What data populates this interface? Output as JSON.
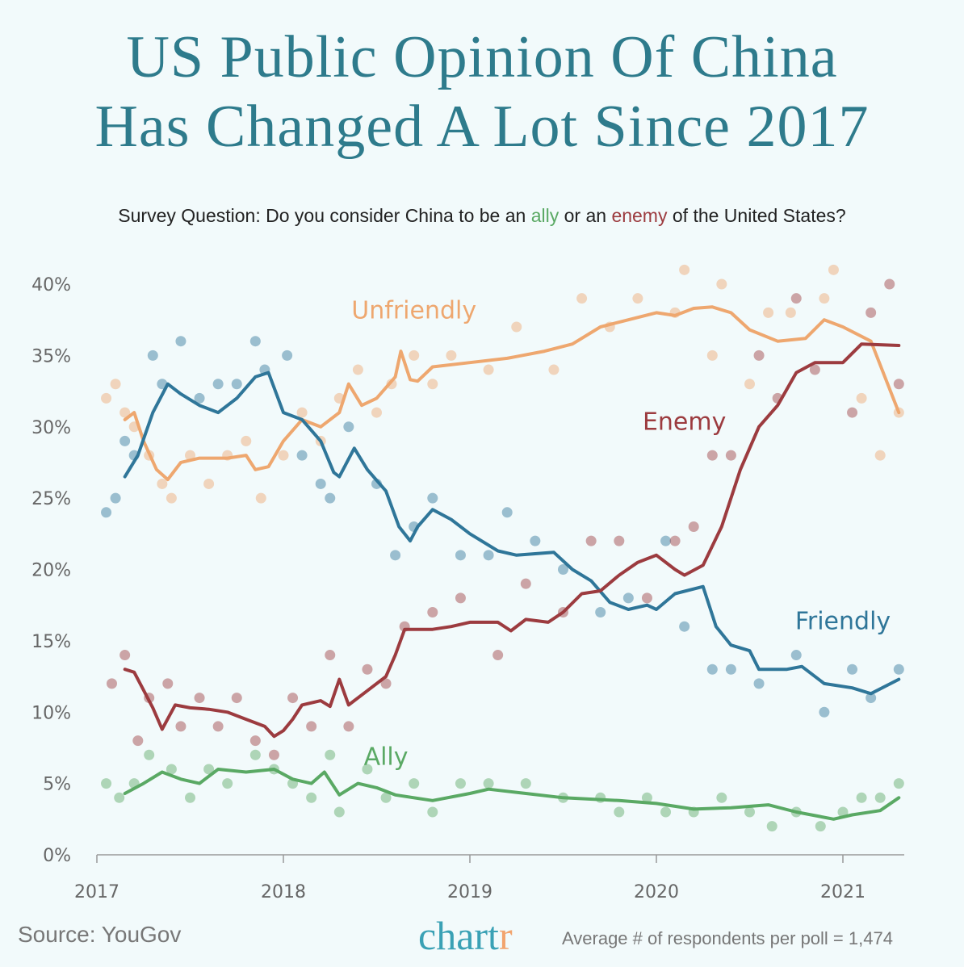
{
  "title_lines": [
    "US Public Opinion Of China",
    "Has Changed A Lot Since 2017"
  ],
  "subtitle": {
    "prefix": "Survey Question:",
    "part1": " Do you consider China to be an ",
    "ally": "ally",
    "part2": " or an ",
    "enemy": "enemy",
    "part3": " of the United States?"
  },
  "source": "Source: YouGov",
  "logo": {
    "main": "chart",
    "accent": "r"
  },
  "note": "Average # of respondents per poll = 1,474",
  "chart_data": {
    "type": "line",
    "title": "US Public Opinion Of China Has Changed A Lot Since 2017",
    "xlabel": "",
    "ylabel": "",
    "xlim": [
      2017,
      2021.3
    ],
    "ylim": [
      0,
      40
    ],
    "x_ticks": [
      "2017",
      "2018",
      "2019",
      "2020",
      "2021"
    ],
    "y_ticks": [
      "0%",
      "5%",
      "10%",
      "15%",
      "20%",
      "25%",
      "30%",
      "35%",
      "40%"
    ],
    "grid": false,
    "series": [
      {
        "name": "Unfriendly",
        "color": "#eea76f",
        "label_at": [
          2018.7,
          37.6
        ],
        "x": [
          2017.15,
          2017.2,
          2017.25,
          2017.32,
          2017.38,
          2017.45,
          2017.55,
          2017.7,
          2017.8,
          2017.85,
          2017.92,
          2018.0,
          2018.1,
          2018.2,
          2018.3,
          2018.35,
          2018.42,
          2018.5,
          2018.6,
          2018.63,
          2018.68,
          2018.72,
          2018.8,
          2019.0,
          2019.2,
          2019.4,
          2019.55,
          2019.7,
          2019.85,
          2020.0,
          2020.1,
          2020.2,
          2020.3,
          2020.4,
          2020.5,
          2020.65,
          2020.8,
          2020.9,
          2021.0,
          2021.15,
          2021.3
        ],
        "y": [
          30.5,
          31,
          29,
          27,
          26.3,
          27.5,
          27.8,
          27.8,
          28,
          27,
          27.2,
          29,
          30.5,
          30,
          31,
          33,
          31.5,
          32,
          33.5,
          35.3,
          33.3,
          33.2,
          34.2,
          34.5,
          34.8,
          35.3,
          35.8,
          37,
          37.5,
          38,
          37.8,
          38.3,
          38.4,
          38,
          36.8,
          36,
          36.2,
          37.5,
          37,
          36,
          31
        ],
        "dots_x": [
          2017.05,
          2017.1,
          2017.15,
          2017.2,
          2017.28,
          2017.35,
          2017.4,
          2017.5,
          2017.6,
          2017.7,
          2017.8,
          2017.88,
          2018.0,
          2018.1,
          2018.2,
          2018.3,
          2018.4,
          2018.5,
          2018.58,
          2018.7,
          2018.8,
          2018.9,
          2019.1,
          2019.25,
          2019.45,
          2019.6,
          2019.75,
          2019.9,
          2020.1,
          2020.15,
          2020.3,
          2020.35,
          2020.5,
          2020.6,
          2020.72,
          2020.9,
          2020.95,
          2021.1,
          2021.2,
          2021.3
        ],
        "dots_y": [
          32,
          33,
          31,
          30,
          28,
          26,
          25,
          28,
          26,
          28,
          29,
          25,
          28,
          31,
          29,
          32,
          34,
          31,
          33,
          35,
          33,
          35,
          34,
          37,
          34,
          39,
          37,
          39,
          38,
          41,
          35,
          40,
          33,
          38,
          38,
          39,
          41,
          32,
          28,
          31
        ]
      },
      {
        "name": "Friendly",
        "color": "#2f7699",
        "label_at": [
          2021.0,
          15.8
        ],
        "x": [
          2017.15,
          2017.22,
          2017.3,
          2017.38,
          2017.45,
          2017.55,
          2017.65,
          2017.75,
          2017.85,
          2017.92,
          2018.0,
          2018.1,
          2018.2,
          2018.27,
          2018.3,
          2018.38,
          2018.45,
          2018.55,
          2018.62,
          2018.68,
          2018.72,
          2018.8,
          2018.9,
          2019.0,
          2019.15,
          2019.25,
          2019.45,
          2019.55,
          2019.65,
          2019.75,
          2019.85,
          2019.95,
          2020.0,
          2020.1,
          2020.25,
          2020.32,
          2020.4,
          2020.5,
          2020.55,
          2020.7,
          2020.78,
          2020.9,
          2021.05,
          2021.15,
          2021.3
        ],
        "y": [
          26.5,
          28,
          31,
          33,
          32.3,
          31.5,
          31,
          32,
          33.5,
          33.8,
          31,
          30.5,
          29,
          26.8,
          26.5,
          28.5,
          27,
          25.5,
          23,
          22,
          23,
          24.2,
          23.5,
          22.5,
          21.3,
          21,
          21.2,
          20,
          19.2,
          17.7,
          17.2,
          17.5,
          17.2,
          18.3,
          18.8,
          16,
          14.7,
          14.3,
          13,
          13,
          13.2,
          12,
          11.7,
          11.3,
          12.3
        ],
        "dots_x": [
          2017.05,
          2017.1,
          2017.15,
          2017.2,
          2017.3,
          2017.35,
          2017.45,
          2017.55,
          2017.65,
          2017.75,
          2017.85,
          2017.9,
          2018.02,
          2018.1,
          2018.2,
          2018.25,
          2018.35,
          2018.5,
          2018.6,
          2018.7,
          2018.8,
          2018.95,
          2019.1,
          2019.2,
          2019.35,
          2019.5,
          2019.7,
          2019.85,
          2020.05,
          2020.15,
          2020.3,
          2020.4,
          2020.55,
          2020.75,
          2020.9,
          2021.05,
          2021.15,
          2021.3
        ],
        "dots_y": [
          24,
          25,
          29,
          28,
          35,
          33,
          36,
          32,
          33,
          33,
          36,
          34,
          35,
          28,
          26,
          25,
          30,
          26,
          21,
          23,
          25,
          21,
          21,
          24,
          22,
          20,
          17,
          18,
          22,
          16,
          13,
          13,
          12,
          14,
          10,
          13,
          11,
          13
        ]
      },
      {
        "name": "Enemy",
        "color": "#9c3b3f",
        "label_at": [
          2020.15,
          29.8
        ],
        "x": [
          2017.15,
          2017.2,
          2017.3,
          2017.35,
          2017.42,
          2017.5,
          2017.6,
          2017.7,
          2017.8,
          2017.9,
          2017.95,
          2018.0,
          2018.05,
          2018.1,
          2018.2,
          2018.25,
          2018.3,
          2018.35,
          2018.45,
          2018.55,
          2018.6,
          2018.65,
          2018.8,
          2018.9,
          2019.0,
          2019.15,
          2019.22,
          2019.3,
          2019.42,
          2019.5,
          2019.6,
          2019.7,
          2019.8,
          2019.9,
          2020.0,
          2020.1,
          2020.15,
          2020.25,
          2020.35,
          2020.45,
          2020.55,
          2020.65,
          2020.75,
          2020.85,
          2021.0,
          2021.1,
          2021.3
        ],
        "y": [
          13,
          12.8,
          10.3,
          8.8,
          10.5,
          10.3,
          10.2,
          10,
          9.5,
          9,
          8.3,
          8.7,
          9.5,
          10.5,
          10.8,
          10.4,
          12.3,
          10.5,
          11.5,
          12.5,
          14,
          15.8,
          15.8,
          16,
          16.3,
          16.3,
          15.7,
          16.5,
          16.3,
          17,
          18.3,
          18.5,
          19.6,
          20.5,
          21,
          20,
          19.6,
          20.3,
          23,
          27,
          30,
          31.5,
          33.8,
          34.5,
          34.5,
          35.8,
          35.7
        ],
        "dots_x": [
          2017.08,
          2017.15,
          2017.22,
          2017.28,
          2017.38,
          2017.45,
          2017.55,
          2017.65,
          2017.75,
          2017.85,
          2017.95,
          2018.05,
          2018.15,
          2018.25,
          2018.35,
          2018.45,
          2018.55,
          2018.65,
          2018.8,
          2018.95,
          2019.15,
          2019.3,
          2019.5,
          2019.65,
          2019.8,
          2019.95,
          2020.1,
          2020.2,
          2020.3,
          2020.4,
          2020.55,
          2020.65,
          2020.75,
          2020.85,
          2021.05,
          2021.15,
          2021.25,
          2021.3
        ],
        "dots_y": [
          12,
          14,
          8,
          11,
          12,
          9,
          11,
          9,
          11,
          8,
          7,
          11,
          9,
          14,
          9,
          13,
          12,
          16,
          17,
          18,
          14,
          19,
          17,
          22,
          22,
          18,
          22,
          23,
          28,
          28,
          35,
          32,
          39,
          34,
          31,
          38,
          40,
          33
        ]
      },
      {
        "name": "Ally",
        "color": "#5aa964",
        "label_at": [
          2018.55,
          6.3
        ],
        "x": [
          2017.15,
          2017.25,
          2017.35,
          2017.45,
          2017.55,
          2017.65,
          2017.8,
          2017.95,
          2018.05,
          2018.15,
          2018.22,
          2018.3,
          2018.4,
          2018.5,
          2018.6,
          2018.8,
          2019.0,
          2019.1,
          2019.3,
          2019.5,
          2019.8,
          2020.0,
          2020.2,
          2020.4,
          2020.6,
          2020.75,
          2020.95,
          2021.05,
          2021.2,
          2021.3
        ],
        "y": [
          4.3,
          5,
          5.8,
          5.3,
          5,
          6,
          5.8,
          6,
          5.3,
          5,
          5.8,
          4.2,
          5,
          4.7,
          4.2,
          3.8,
          4.3,
          4.6,
          4.3,
          4,
          3.8,
          3.6,
          3.2,
          3.3,
          3.5,
          3,
          2.5,
          2.8,
          3.1,
          4
        ],
        "dots_x": [
          2017.05,
          2017.12,
          2017.2,
          2017.28,
          2017.4,
          2017.5,
          2017.6,
          2017.7,
          2017.85,
          2017.95,
          2018.05,
          2018.15,
          2018.25,
          2018.3,
          2018.45,
          2018.55,
          2018.7,
          2018.8,
          2018.95,
          2019.1,
          2019.3,
          2019.5,
          2019.7,
          2019.8,
          2019.95,
          2020.05,
          2020.2,
          2020.35,
          2020.5,
          2020.62,
          2020.75,
          2020.88,
          2021.0,
          2021.1,
          2021.2,
          2021.3
        ],
        "dots_y": [
          5,
          4,
          5,
          7,
          6,
          4,
          6,
          5,
          7,
          6,
          5,
          4,
          7,
          3,
          6,
          4,
          5,
          3,
          5,
          5,
          5,
          4,
          4,
          3,
          4,
          3,
          3,
          4,
          3,
          2,
          3,
          2,
          3,
          4,
          4,
          5
        ]
      }
    ]
  }
}
